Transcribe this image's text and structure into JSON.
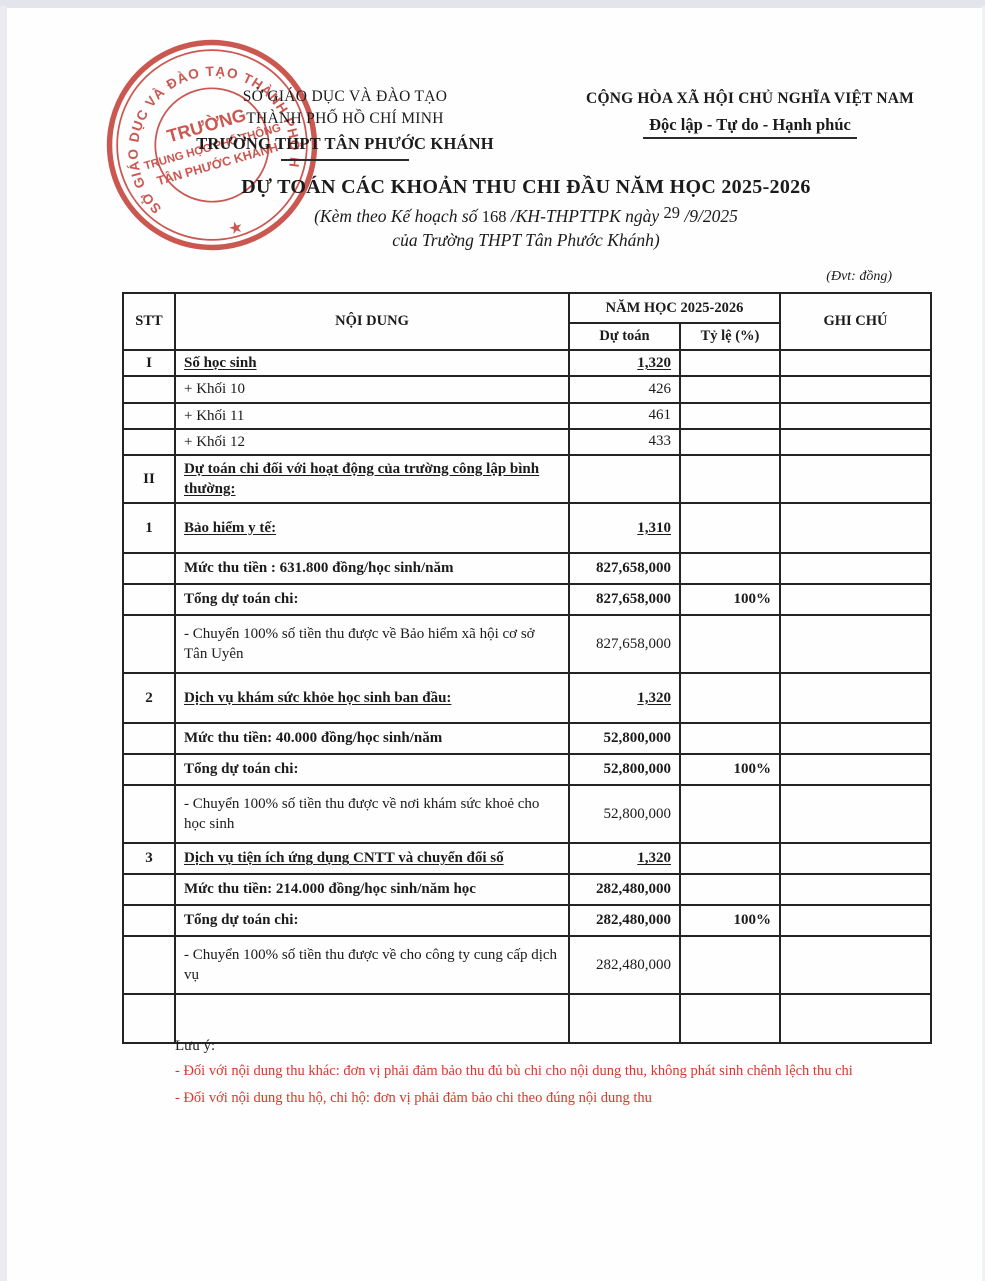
{
  "colors": {
    "ink": "#1b1b1b",
    "stamp_red": "#c5403a",
    "note_red": "#d8382c",
    "table_line": "#242424"
  },
  "header": {
    "left": {
      "line1": "SỞ GIÁO DỤC VÀ ĐÀO TẠO",
      "line2": "THÀNH PHỐ HỒ CHÍ MINH",
      "line3": "TRƯỜNG THPT TÂN PHƯỚC KHÁNH"
    },
    "right": {
      "line1": "CỘNG HÒA XÃ HỘI CHỦ NGHĨA VIỆT NAM",
      "line2": "Độc lập - Tự do - Hạnh phúc"
    },
    "stamp": {
      "ring_text": "SỞ GIÁO DỤC VÀ ĐÀO TẠO THÀNH PHỐ HỒ CHÍ MINH",
      "star": "★",
      "line1": "TRƯỜNG",
      "line2": "TRUNG HỌC PHỔ THÔNG",
      "line3": "TÂN PHƯỚC KHÁNH"
    }
  },
  "title": {
    "main": "DỰ TOÁN CÁC KHOẢN THU CHI ĐẦU NĂM HỌC 2025-2026",
    "sub1_pre": "(Kèm theo Kế hoạch số ",
    "sub1_num": "168",
    "sub1_mid": " /KH-THPTTPK ngày ",
    "sub1_day": "29",
    "sub1_post": " /9/2025",
    "sub2": "của Trường THPT Tân Phước Khánh)",
    "unit_note": "(Đvt: đồng)"
  },
  "table": {
    "headers": {
      "stt": "STT",
      "noi_dung": "NỘI DUNG",
      "nam_hoc": "NĂM HỌC 2025-2026",
      "du_toan": "Dự toán",
      "ty_le": "Tỷ lệ (%)",
      "ghi_chu": "GHI CHÚ"
    },
    "rows": [
      {
        "kind": "roman",
        "stt": "I",
        "label": "Số học sinh",
        "du_toan": "1,320",
        "ty_le": "",
        "ghi_chu": ""
      },
      {
        "kind": "plus",
        "stt": "",
        "label": "+ Khối 10",
        "du_toan": "426",
        "ty_le": "",
        "ghi_chu": ""
      },
      {
        "kind": "plus",
        "stt": "",
        "label": "+ Khối 11",
        "du_toan": "461",
        "ty_le": "",
        "ghi_chu": ""
      },
      {
        "kind": "plus",
        "stt": "",
        "label": "+ Khối 12",
        "du_toan": "433",
        "ty_le": "",
        "ghi_chu": ""
      },
      {
        "kind": "group",
        "stt": "II",
        "label": "Dự toán chi đối với hoạt động của trường công lập bình thường:",
        "du_toan": "",
        "ty_le": "",
        "ghi_chu": ""
      },
      {
        "kind": "item",
        "stt": "1",
        "label": "Bảo hiểm y tế:",
        "du_toan": "1,310",
        "ty_le": "",
        "ghi_chu": ""
      },
      {
        "kind": "fee",
        "stt": "",
        "label": "Mức thu tiền : 631.800 đồng/học sinh/năm",
        "du_toan": "827,658,000",
        "ty_le": "",
        "ghi_chu": ""
      },
      {
        "kind": "total",
        "stt": "",
        "label": "Tổng dự toán chi:",
        "du_toan": "827,658,000",
        "ty_le": "100%",
        "ghi_chu": ""
      },
      {
        "kind": "transfer",
        "stt": "",
        "label": "- Chuyển 100% số tiền thu được về Bảo hiểm xã hội cơ sở Tân Uyên",
        "du_toan": "827,658,000",
        "ty_le": "",
        "ghi_chu": ""
      },
      {
        "kind": "item",
        "stt": "2",
        "label": "Dịch vụ khám sức khỏe học sinh ban đầu:",
        "du_toan": "1,320",
        "ty_le": "",
        "ghi_chu": ""
      },
      {
        "kind": "fee",
        "stt": "",
        "label": "Mức thu tiền: 40.000 đồng/học sinh/năm",
        "du_toan": "52,800,000",
        "ty_le": "",
        "ghi_chu": ""
      },
      {
        "kind": "total",
        "stt": "",
        "label": "Tổng dự toán chi:",
        "du_toan": "52,800,000",
        "ty_le": "100%",
        "ghi_chu": ""
      },
      {
        "kind": "transfer",
        "stt": "",
        "label": "- Chuyển 100% số tiền thu được về nơi khám sức khoẻ cho học sinh",
        "du_toan": "52,800,000",
        "ty_le": "",
        "ghi_chu": ""
      },
      {
        "kind": "item3",
        "stt": "3",
        "label": "Dịch vụ tiện ích ứng dụng CNTT và chuyển đổi số",
        "du_toan": "1,320",
        "ty_le": "",
        "ghi_chu": ""
      },
      {
        "kind": "fee",
        "stt": "",
        "label": "Mức thu tiền: 214.000 đồng/học sinh/năm học",
        "du_toan": "282,480,000",
        "ty_le": "",
        "ghi_chu": ""
      },
      {
        "kind": "total",
        "stt": "",
        "label": "Tổng dự toán chi:",
        "du_toan": "282,480,000",
        "ty_le": "100%",
        "ghi_chu": ""
      },
      {
        "kind": "transfer",
        "stt": "",
        "label": "- Chuyển 100% số tiền thu được về cho công ty cung cấp dịch vụ",
        "du_toan": "282,480,000",
        "ty_le": "",
        "ghi_chu": ""
      },
      {
        "kind": "empty",
        "stt": "",
        "label": "",
        "du_toan": "",
        "ty_le": "",
        "ghi_chu": ""
      }
    ]
  },
  "notes": {
    "lead": "Lưu ý:",
    "items": [
      "- Đối với nội dung thu khác: đơn vị phải đảm bảo thu đủ bù chi cho nội dung thu, không phát sinh chênh lệch thu chi",
      "- Đối với nội dung thu hộ, chi hộ: đơn vị phải đảm bảo chi theo đúng nội dung thu"
    ]
  }
}
